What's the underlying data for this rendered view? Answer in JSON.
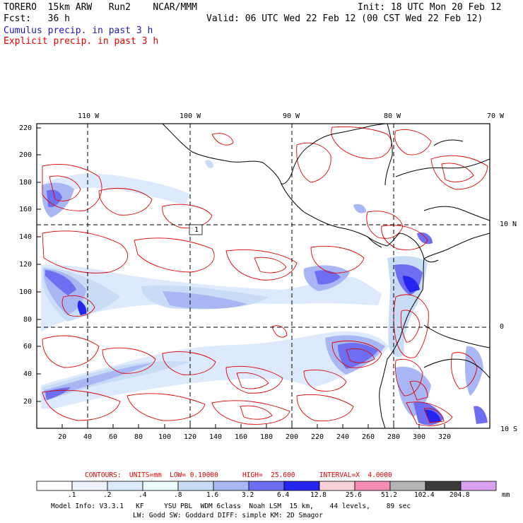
{
  "header": {
    "model": "TORERO  15km ARW   Run2    NCAR/MMM",
    "init": "Init: 18 UTC Mon 20 Feb 12",
    "fcst": "Fcst:   36 h",
    "valid": "Valid: 06 UTC Wed 22 Feb 12 (00 CST Wed 22 Feb 12)",
    "legend_cumulus": "Cumulus precip. in past 3 h",
    "legend_explicit": "Explicit precip. in past 3 h"
  },
  "map": {
    "lon_labels": [
      "110 W",
      "100 W",
      "90 W",
      "80 W",
      "70 W"
    ],
    "lat_labels_right": [
      "10 N",
      "0",
      "10 S"
    ],
    "y_ticks": [
      "220",
      "200",
      "180",
      "160",
      "140",
      "120",
      "100",
      "80",
      "60",
      "40",
      "20"
    ],
    "x_ticks": [
      "20",
      "40",
      "60",
      "80",
      "100",
      "120",
      "140",
      "160",
      "180",
      "200",
      "220",
      "240",
      "260",
      "280",
      "300",
      "320"
    ],
    "contour_label": "1"
  },
  "contour_info": {
    "label": "CONTOURS:  UNITS=mm  LOW= 0.10000      HIGH=  25.600      INTERVAL=X  4.0000"
  },
  "colorbar": {
    "labels": [
      ".1",
      ".2",
      ".4",
      ".8",
      "1.6",
      "3.2",
      "6.4",
      "12.8",
      "25.6",
      "51.2",
      "102.4",
      "204.8"
    ],
    "unit": "mm",
    "colors": [
      "#ffffff",
      "#eef4ff",
      "#dde9fc",
      "#eafcfb",
      "#c8dcf6",
      "#a9b6f4",
      "#6e6ef0",
      "#2525f0",
      "#fad2d8",
      "#f48cb6",
      "#b4b4b4",
      "#3c3c3c",
      "#dca0f0"
    ]
  },
  "footer": {
    "line1": "Model Info: V3.3.1   KF     YSU PBL  WDM 6class  Noah LSM  15 km,    44 levels,    89 sec",
    "line2": "LW: Godd SW: Goddard DIFF: simple KM: 2D Smagor"
  }
}
